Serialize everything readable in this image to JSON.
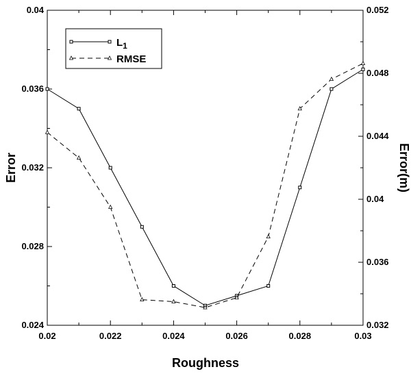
{
  "chart_data": {
    "type": "line",
    "xlabel": "Roughness",
    "ylabel_left": "Error",
    "ylabel_right": "Error(m)",
    "xlim": [
      0.02,
      0.03
    ],
    "ylim_left": [
      0.024,
      0.04
    ],
    "ylim_right": [
      0.032,
      0.052
    ],
    "x_ticks": [
      "0.02",
      "0.022",
      "0.024",
      "0.026",
      "0.028",
      "0.03"
    ],
    "y_ticks_left": [
      "0.024",
      "0.028",
      "0.032",
      "0.036",
      "0.04"
    ],
    "y_ticks_right": [
      "0.032",
      "0.036",
      "0.04",
      "0.044",
      "0.048",
      "0.052"
    ],
    "grid": false,
    "legend_position": "top-left",
    "x": [
      0.02,
      0.021,
      0.022,
      0.023,
      0.024,
      0.025,
      0.026,
      0.027,
      0.028,
      0.029,
      0.03
    ],
    "series": [
      {
        "name": "L1",
        "axis": "left",
        "line_style": "solid",
        "marker": "square",
        "values": [
          0.036,
          0.035,
          0.032,
          0.029,
          0.026,
          0.025,
          0.0255,
          0.026,
          0.031,
          0.036,
          0.037
        ]
      },
      {
        "name": "RMSE",
        "axis": "left",
        "line_style": "dashed",
        "marker": "triangle",
        "values": [
          0.0338,
          0.0325,
          0.03,
          0.0253,
          0.0252,
          0.0249,
          0.0254,
          0.0285,
          0.035,
          0.0365,
          0.0373
        ]
      }
    ]
  },
  "legend": {
    "l1_main": "L",
    "l1_sub": "1",
    "rmse": "RMSE"
  }
}
